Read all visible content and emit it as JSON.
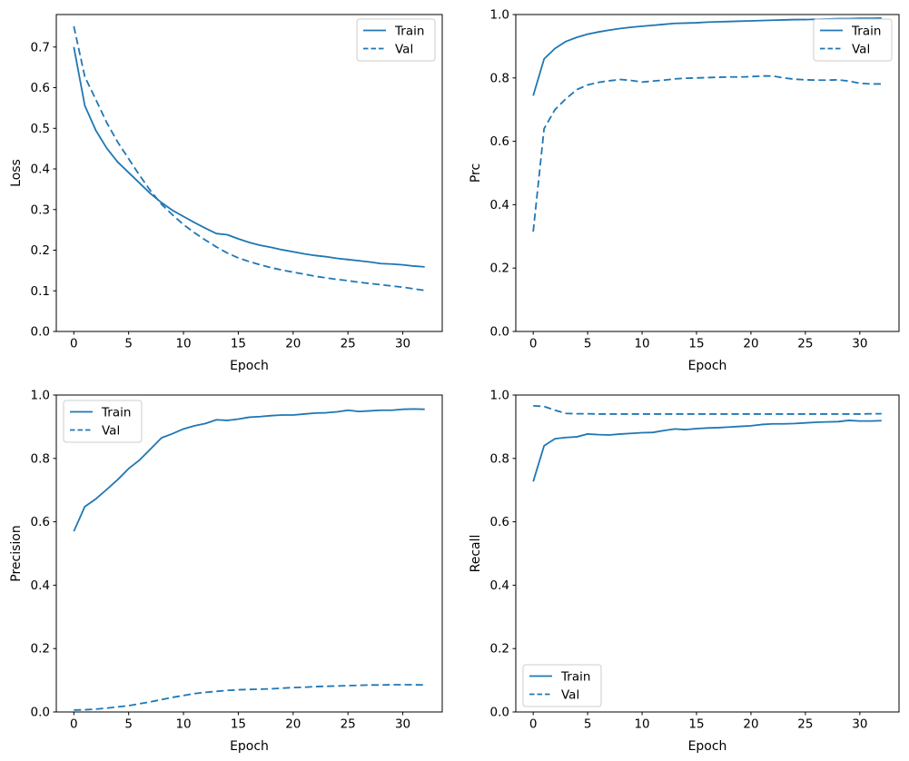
{
  "figure": {
    "background": "#ffffff",
    "accent_color": "#1f77b4",
    "text_color": "#000000",
    "spine_color": "#000000",
    "legend_border_color": "#cccccc",
    "legend_background": "#ffffff"
  },
  "chart_data": [
    {
      "id": "loss",
      "type": "line",
      "title": "",
      "xlabel": "Epoch",
      "ylabel": "Loss",
      "xlim": [
        -1.6,
        33.6
      ],
      "ylim": [
        0,
        0.78
      ],
      "grid": false,
      "legend_position": "upper-right",
      "xticks": [
        0,
        5,
        10,
        15,
        20,
        25,
        30
      ],
      "xtick_labels": [
        "0",
        "5",
        "10",
        "15",
        "20",
        "25",
        "30"
      ],
      "yticks": [
        0.0,
        0.1,
        0.2,
        0.3,
        0.4,
        0.5,
        0.6,
        0.7
      ],
      "ytick_labels": [
        "0.0",
        "0.1",
        "0.2",
        "0.3",
        "0.4",
        "0.5",
        "0.6",
        "0.7"
      ],
      "x": [
        0,
        1,
        2,
        3,
        4,
        5,
        6,
        7,
        8,
        9,
        10,
        11,
        12,
        13,
        14,
        15,
        16,
        17,
        18,
        19,
        20,
        21,
        22,
        23,
        24,
        25,
        26,
        27,
        28,
        29,
        30,
        31,
        32
      ],
      "series": [
        {
          "name": "Train",
          "style": "solid",
          "values": [
            0.7,
            0.556,
            0.495,
            0.451,
            0.417,
            0.391,
            0.365,
            0.339,
            0.317,
            0.298,
            0.283,
            0.268,
            0.254,
            0.241,
            0.238,
            0.228,
            0.219,
            0.212,
            0.207,
            0.201,
            0.196,
            0.191,
            0.187,
            0.184,
            0.18,
            0.177,
            0.174,
            0.171,
            0.167,
            0.166,
            0.164,
            0.161,
            0.159
          ]
        },
        {
          "name": "Val",
          "style": "dashed",
          "values": [
            0.751,
            0.627,
            0.571,
            0.514,
            0.466,
            0.425,
            0.384,
            0.346,
            0.313,
            0.287,
            0.263,
            0.243,
            0.225,
            0.208,
            0.193,
            0.181,
            0.172,
            0.164,
            0.157,
            0.151,
            0.146,
            0.141,
            0.136,
            0.132,
            0.128,
            0.125,
            0.121,
            0.118,
            0.115,
            0.112,
            0.109,
            0.105,
            0.101
          ]
        }
      ]
    },
    {
      "id": "prc",
      "type": "line",
      "title": "",
      "xlabel": "Epoch",
      "ylabel": "Prc",
      "xlim": [
        -1.6,
        33.6
      ],
      "ylim": [
        0,
        1.0
      ],
      "grid": false,
      "legend_position": "upper-right",
      "xticks": [
        0,
        5,
        10,
        15,
        20,
        25,
        30
      ],
      "xtick_labels": [
        "0",
        "5",
        "10",
        "15",
        "20",
        "25",
        "30"
      ],
      "yticks": [
        0.0,
        0.2,
        0.4,
        0.6,
        0.8,
        1.0
      ],
      "ytick_labels": [
        "0.0",
        "0.2",
        "0.4",
        "0.6",
        "0.8",
        "1.0"
      ],
      "x": [
        0,
        1,
        2,
        3,
        4,
        5,
        6,
        7,
        8,
        9,
        10,
        11,
        12,
        13,
        14,
        15,
        16,
        17,
        18,
        19,
        20,
        21,
        22,
        23,
        24,
        25,
        26,
        27,
        28,
        29,
        30,
        31,
        32
      ],
      "series": [
        {
          "name": "Train",
          "style": "solid",
          "values": [
            0.744,
            0.86,
            0.893,
            0.915,
            0.928,
            0.938,
            0.945,
            0.951,
            0.956,
            0.96,
            0.963,
            0.966,
            0.969,
            0.972,
            0.973,
            0.974,
            0.976,
            0.977,
            0.978,
            0.979,
            0.98,
            0.981,
            0.982,
            0.983,
            0.984,
            0.984,
            0.985,
            0.986,
            0.987,
            0.987,
            0.988,
            0.988,
            0.989
          ]
        },
        {
          "name": "Val",
          "style": "dashed",
          "values": [
            0.315,
            0.64,
            0.7,
            0.734,
            0.763,
            0.778,
            0.786,
            0.791,
            0.795,
            0.792,
            0.787,
            0.79,
            0.793,
            0.797,
            0.799,
            0.8,
            0.801,
            0.802,
            0.803,
            0.803,
            0.804,
            0.806,
            0.806,
            0.8,
            0.796,
            0.794,
            0.793,
            0.793,
            0.794,
            0.79,
            0.783,
            0.781,
            0.781
          ]
        }
      ]
    },
    {
      "id": "precision",
      "type": "line",
      "title": "",
      "xlabel": "Epoch",
      "ylabel": "Precision",
      "xlim": [
        -1.6,
        33.6
      ],
      "ylim": [
        0,
        1.0
      ],
      "grid": false,
      "legend_position": "upper-left",
      "xticks": [
        0,
        5,
        10,
        15,
        20,
        25,
        30
      ],
      "xtick_labels": [
        "0",
        "5",
        "10",
        "15",
        "20",
        "25",
        "30"
      ],
      "yticks": [
        0.0,
        0.2,
        0.4,
        0.6,
        0.8,
        1.0
      ],
      "ytick_labels": [
        "0.0",
        "0.2",
        "0.4",
        "0.6",
        "0.8",
        "1.0"
      ],
      "x": [
        0,
        1,
        2,
        3,
        4,
        5,
        6,
        7,
        8,
        9,
        10,
        11,
        12,
        13,
        14,
        15,
        16,
        17,
        18,
        19,
        20,
        21,
        22,
        23,
        24,
        25,
        26,
        27,
        28,
        29,
        30,
        31,
        32
      ],
      "series": [
        {
          "name": "Train",
          "style": "solid",
          "values": [
            0.57,
            0.648,
            0.672,
            0.702,
            0.733,
            0.768,
            0.795,
            0.83,
            0.865,
            0.878,
            0.893,
            0.903,
            0.91,
            0.922,
            0.92,
            0.924,
            0.93,
            0.932,
            0.935,
            0.937,
            0.937,
            0.94,
            0.943,
            0.944,
            0.947,
            0.952,
            0.948,
            0.95,
            0.952,
            0.952,
            0.955,
            0.956,
            0.955
          ]
        },
        {
          "name": "Val",
          "style": "dashed",
          "values": [
            0.006,
            0.007,
            0.009,
            0.012,
            0.016,
            0.02,
            0.026,
            0.032,
            0.039,
            0.046,
            0.052,
            0.058,
            0.062,
            0.065,
            0.068,
            0.07,
            0.071,
            0.072,
            0.073,
            0.075,
            0.077,
            0.078,
            0.08,
            0.081,
            0.082,
            0.083,
            0.084,
            0.085,
            0.085,
            0.086,
            0.086,
            0.086,
            0.085
          ]
        }
      ]
    },
    {
      "id": "recall",
      "type": "line",
      "title": "",
      "xlabel": "Epoch",
      "ylabel": "Recall",
      "xlim": [
        -1.6,
        33.6
      ],
      "ylim": [
        0,
        1.0
      ],
      "grid": false,
      "legend_position": "lower-left",
      "xticks": [
        0,
        5,
        10,
        15,
        20,
        25,
        30
      ],
      "xtick_labels": [
        "0",
        "5",
        "10",
        "15",
        "20",
        "25",
        "30"
      ],
      "yticks": [
        0.0,
        0.2,
        0.4,
        0.6,
        0.8,
        1.0
      ],
      "ytick_labels": [
        "0.0",
        "0.2",
        "0.4",
        "0.6",
        "0.8",
        "1.0"
      ],
      "x": [
        0,
        1,
        2,
        3,
        4,
        5,
        6,
        7,
        8,
        9,
        10,
        11,
        12,
        13,
        14,
        15,
        16,
        17,
        18,
        19,
        20,
        21,
        22,
        23,
        24,
        25,
        26,
        27,
        28,
        29,
        30,
        31,
        32
      ],
      "series": [
        {
          "name": "Train",
          "style": "solid",
          "values": [
            0.727,
            0.84,
            0.862,
            0.866,
            0.868,
            0.877,
            0.875,
            0.874,
            0.877,
            0.879,
            0.881,
            0.882,
            0.888,
            0.893,
            0.891,
            0.894,
            0.896,
            0.897,
            0.899,
            0.901,
            0.903,
            0.907,
            0.909,
            0.909,
            0.91,
            0.912,
            0.914,
            0.915,
            0.916,
            0.92,
            0.918,
            0.918,
            0.919
          ]
        },
        {
          "name": "Val",
          "style": "dashed",
          "values": [
            0.966,
            0.964,
            0.952,
            0.942,
            0.941,
            0.941,
            0.94,
            0.94,
            0.94,
            0.94,
            0.94,
            0.94,
            0.94,
            0.94,
            0.94,
            0.94,
            0.94,
            0.94,
            0.94,
            0.94,
            0.94,
            0.94,
            0.94,
            0.94,
            0.94,
            0.94,
            0.94,
            0.94,
            0.94,
            0.94,
            0.94,
            0.941,
            0.941
          ]
        }
      ]
    }
  ]
}
